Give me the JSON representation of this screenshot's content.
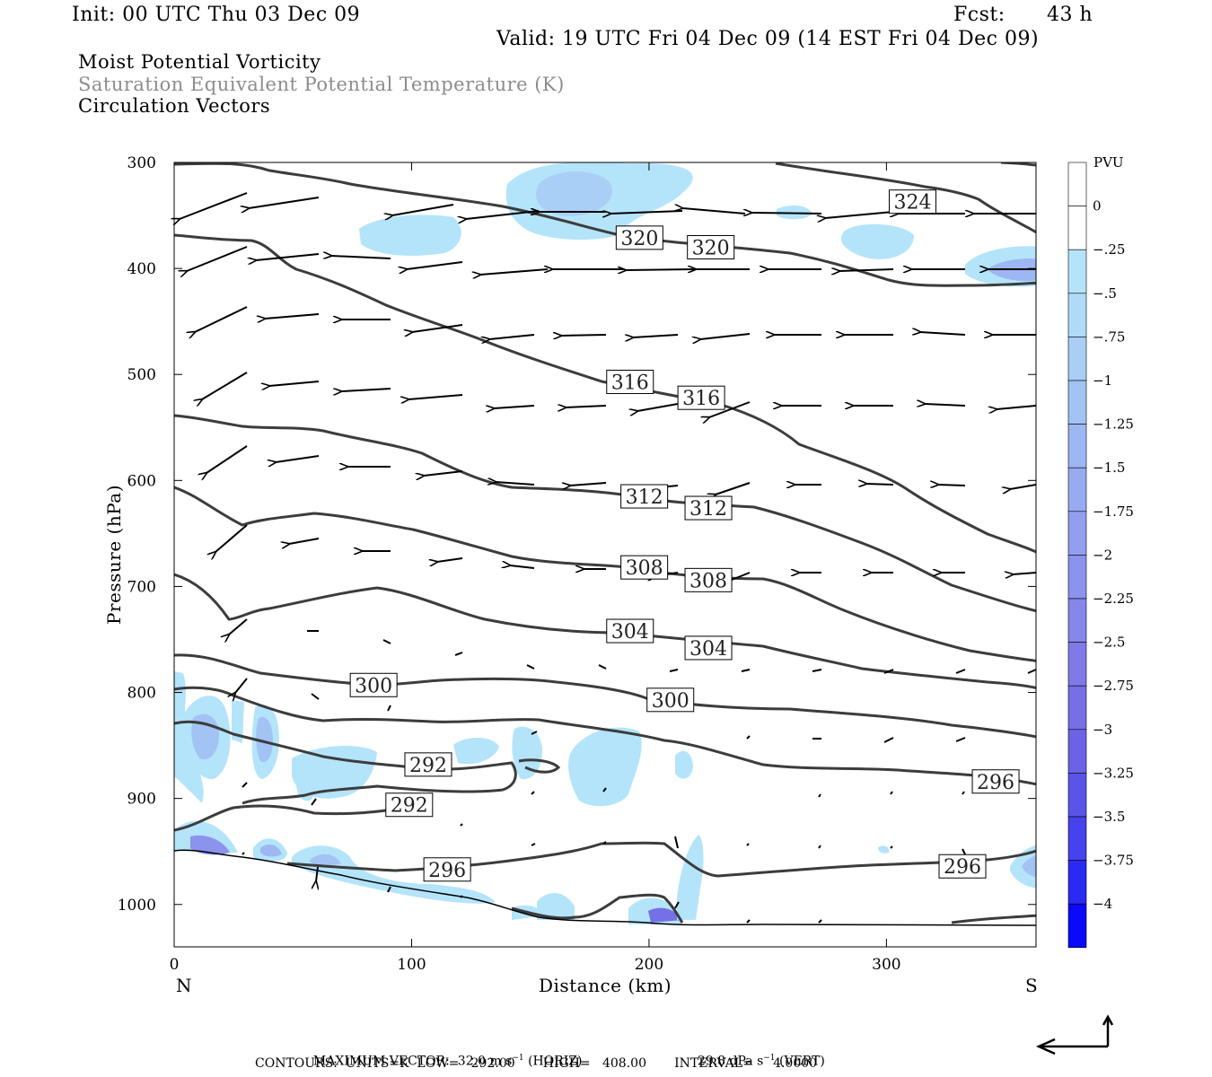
{
  "header": {
    "init": "Init: 00 UTC Thu 03 Dec 09",
    "fcst_label": "Fcst:",
    "fcst_value": "43 h",
    "valid": "Valid: 19 UTC Fri 04 Dec 09 (14 EST Fri 04 Dec 09)"
  },
  "fields": [
    "Moist Potential Vorticity",
    "Saturation Equivalent Potential Temperature (K)",
    "Circulation Vectors"
  ],
  "footer": {
    "max_vector_label": "MAXIMUM VECTOR:",
    "horiz_value": "32.0 m s",
    "horiz_tag": "(HORIZ)",
    "vert_value": "29.8 dPa s",
    "vert_tag": "(VERT)",
    "exp": "−1",
    "contours_line": "CONTOURS:  UNITS=K  LOW=   292.00       HIGH=   408.00       INTERVAL=     4.0000"
  },
  "chart_data": {
    "type": "contour",
    "xlabel": "Distance (km)",
    "ylabel": "Pressure (hPa)",
    "xlim": [
      0,
      363
    ],
    "ylim": [
      1040,
      300
    ],
    "x_ticks": [
      "0",
      "100",
      "200",
      "300"
    ],
    "x_tick_values": [
      0,
      100,
      200,
      300
    ],
    "y_ticks": [
      "300",
      "400",
      "500",
      "600",
      "700",
      "800",
      "900",
      "1000"
    ],
    "y_tick_values": [
      300,
      400,
      500,
      600,
      700,
      800,
      900,
      1000
    ],
    "left_end_label": "N",
    "right_end_label": "S",
    "contour_labels": [
      {
        "text": "324",
        "x": 311,
        "p": 337
      },
      {
        "text": "320",
        "x": 196,
        "p": 371
      },
      {
        "text": "320",
        "x": 226,
        "p": 380
      },
      {
        "text": "316",
        "x": 192,
        "p": 507
      },
      {
        "text": "316",
        "x": 222,
        "p": 522
      },
      {
        "text": "312",
        "x": 198,
        "p": 615
      },
      {
        "text": "312",
        "x": 225,
        "p": 626
      },
      {
        "text": "308",
        "x": 198,
        "p": 682
      },
      {
        "text": "308",
        "x": 225,
        "p": 694
      },
      {
        "text": "304",
        "x": 192,
        "p": 742
      },
      {
        "text": "304",
        "x": 225,
        "p": 758
      },
      {
        "text": "300",
        "x": 84,
        "p": 793
      },
      {
        "text": "300",
        "x": 209,
        "p": 807
      },
      {
        "text": "292",
        "x": 107,
        "p": 868
      },
      {
        "text": "292",
        "x": 99,
        "p": 906
      },
      {
        "text": "296",
        "x": 115,
        "p": 967
      },
      {
        "text": "296",
        "x": 346,
        "p": 884
      },
      {
        "text": "296",
        "x": 332,
        "p": 964
      }
    ],
    "colorbar": {
      "title": "PVU",
      "labels": [
        "0",
        "−.25",
        "−.5",
        "−.75",
        "−1",
        "−1.25",
        "−1.5",
        "−1.75",
        "−2",
        "−2.25",
        "−2.5",
        "−2.75",
        "−3",
        "−3.25",
        "−3.5",
        "−3.75",
        "−4"
      ],
      "colors": [
        "#ffffff",
        "#ffffff",
        "#b4e4fa",
        "#afdbf8",
        "#a9cff6",
        "#a3c3f4",
        "#9db7f2",
        "#97abf0",
        "#919fee",
        "#8b93ec",
        "#8587ea",
        "#7e7be8",
        "#7570e6",
        "#6a63e6",
        "#5a55e8",
        "#4443ec",
        "#2a2af2",
        "#0a0af8"
      ]
    },
    "contour_color": "#3c3c3c",
    "shade_color": "#b4e4fa",
    "grid": false
  }
}
